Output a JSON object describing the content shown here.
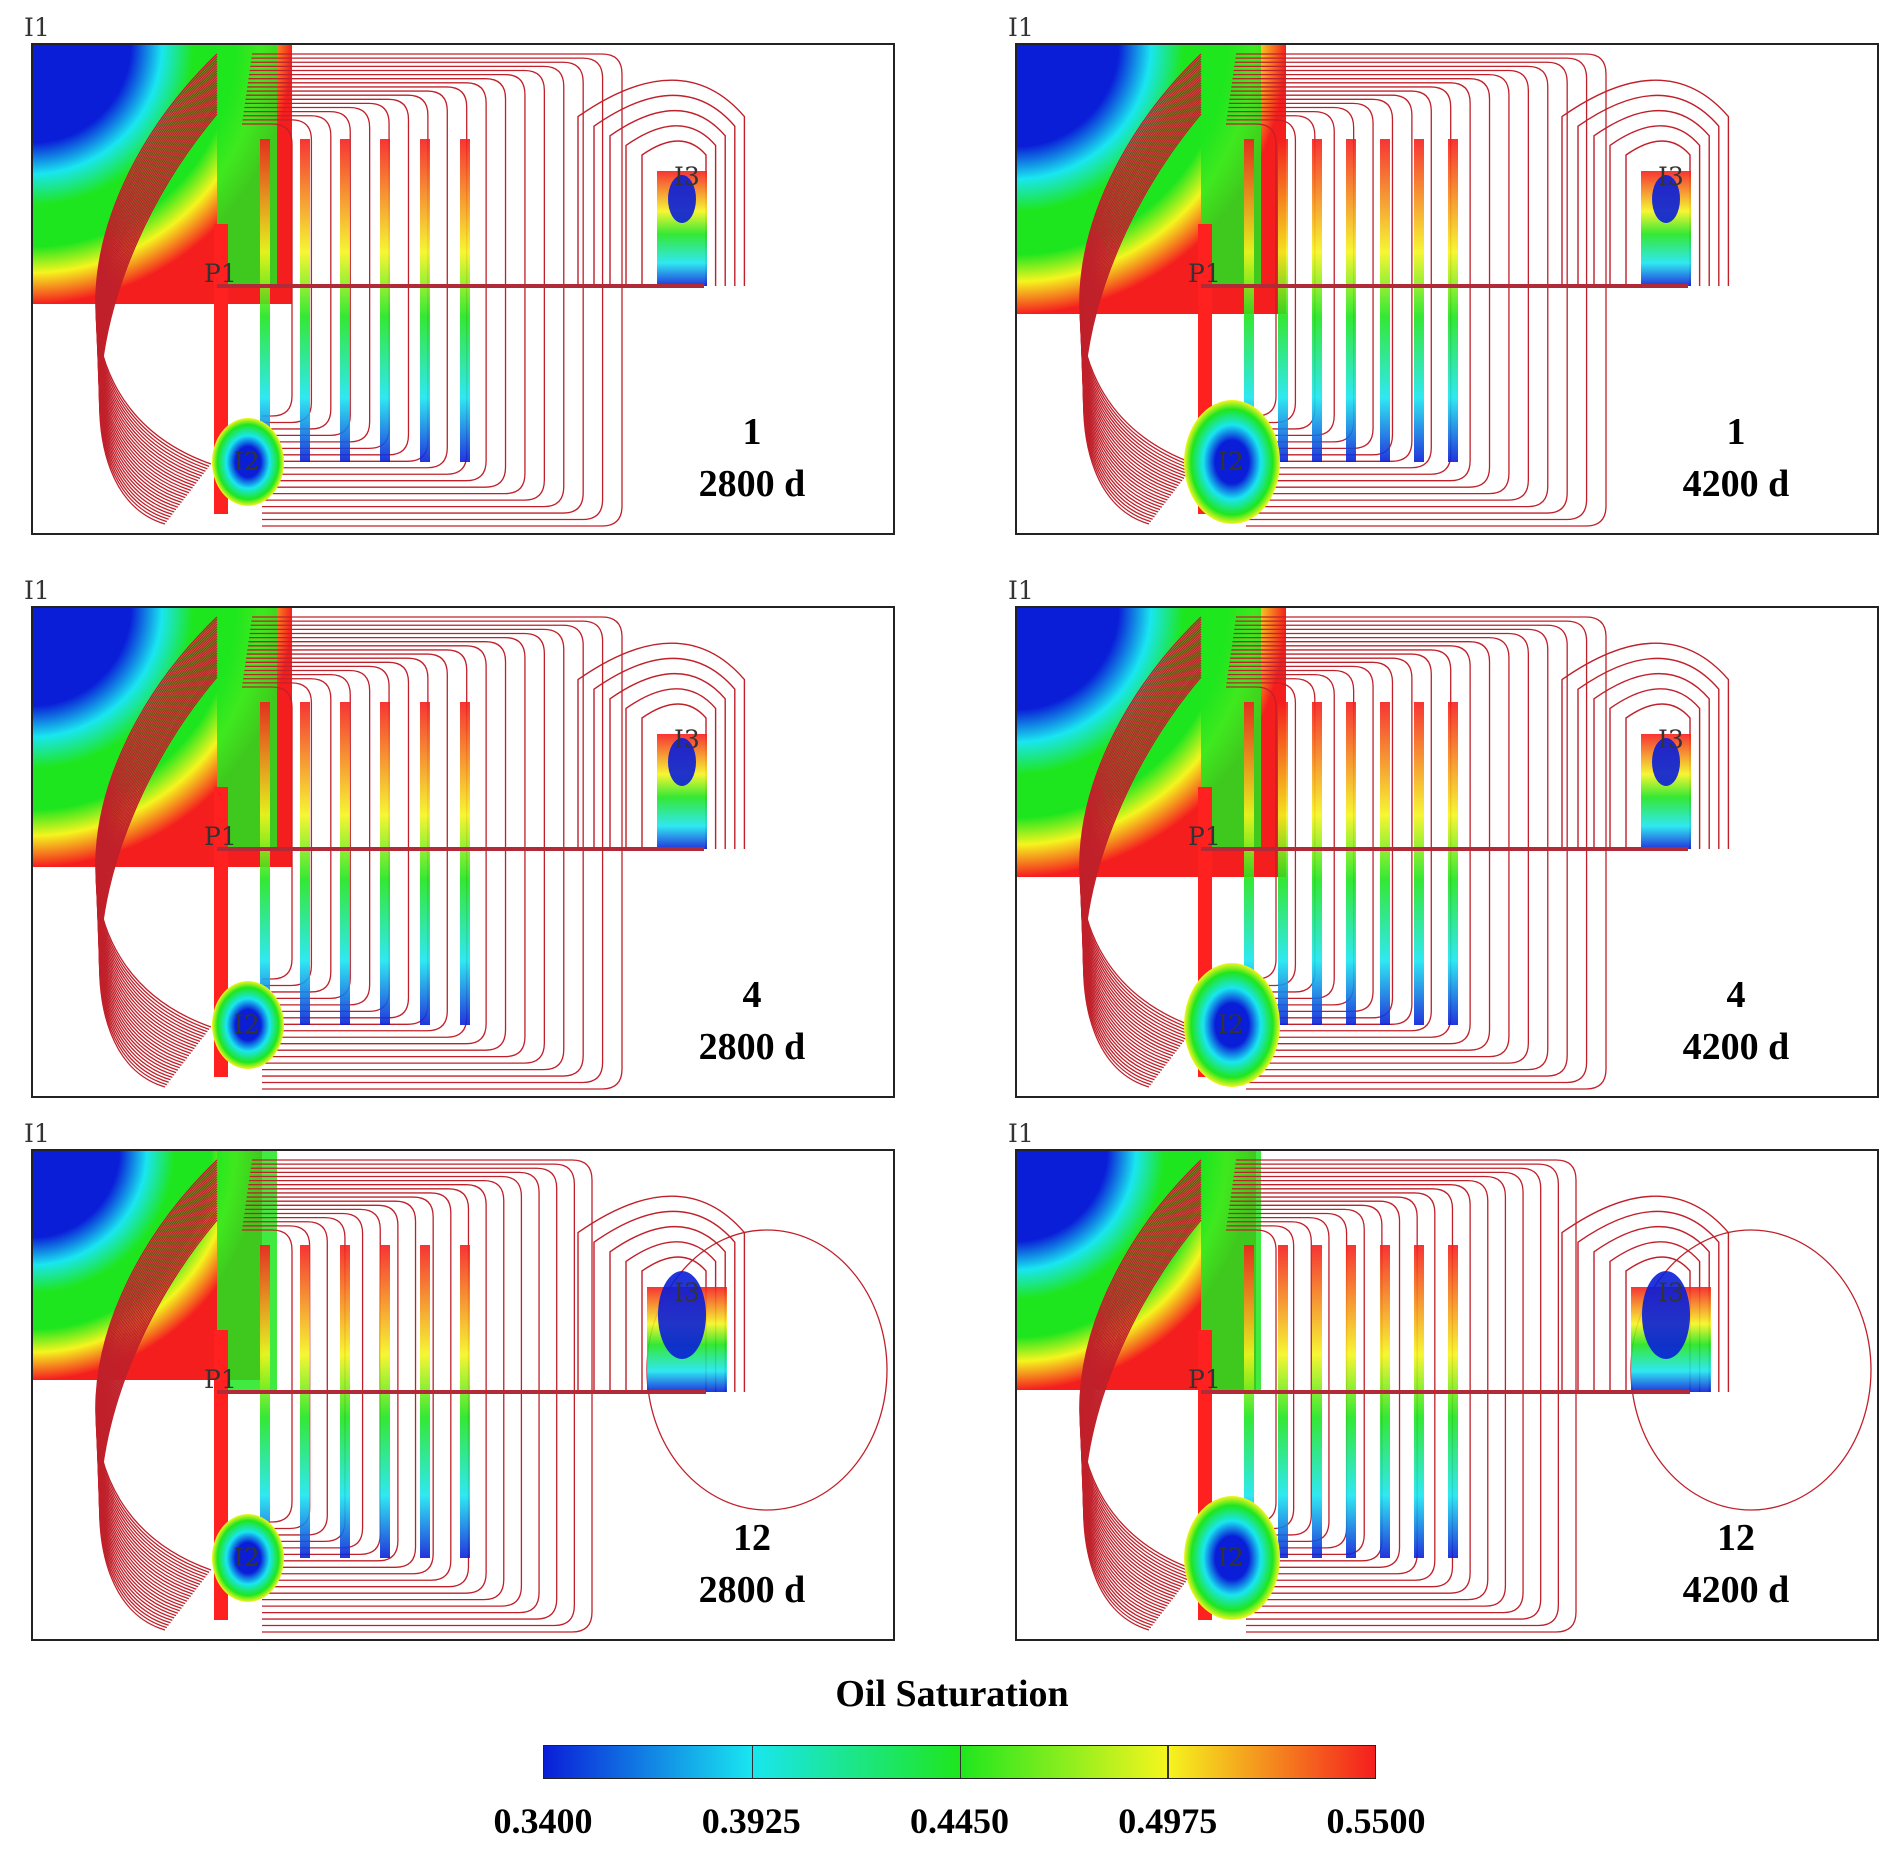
{
  "panels": [
    {
      "row": 0,
      "col": 0,
      "case": "1",
      "time": "2800 d"
    },
    {
      "row": 0,
      "col": 1,
      "case": "1",
      "time": "4200 d"
    },
    {
      "row": 1,
      "col": 0,
      "case": "4",
      "time": "2800 d"
    },
    {
      "row": 1,
      "col": 1,
      "case": "4",
      "time": "4200 d"
    },
    {
      "row": 2,
      "col": 0,
      "case": "12",
      "time": "2800 d"
    },
    {
      "row": 2,
      "col": 1,
      "case": "12",
      "time": "4200 d"
    }
  ],
  "wells": {
    "injector_1": "I1",
    "injector_2": "I2",
    "injector_3": "I3",
    "producer_1": "P1"
  },
  "legend": {
    "title": "Oil Saturation",
    "ticks": [
      "0.3400",
      "0.3925",
      "0.4450",
      "0.4975",
      "0.5500"
    ],
    "colors": [
      "#0a1ed8",
      "#19e6f0",
      "#1ee61e",
      "#f5f51e",
      "#f51e1e"
    ]
  },
  "colors": {
    "streamline": "#c0202a",
    "flooded": "#ff2020",
    "frame": "#222222"
  }
}
